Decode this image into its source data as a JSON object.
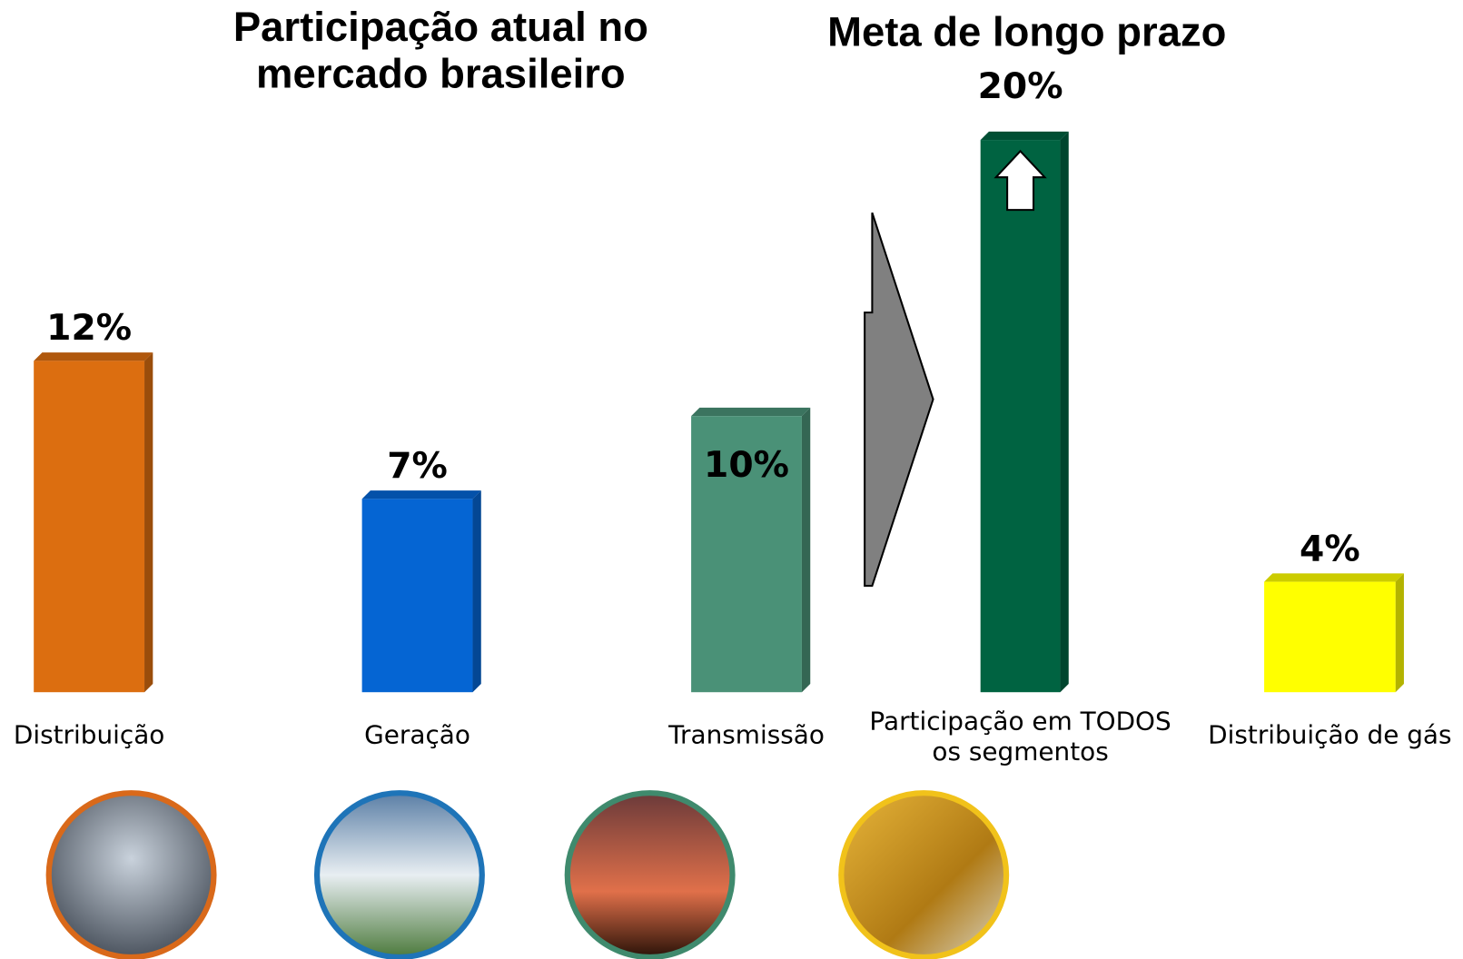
{
  "chart_data": {
    "type": "bar",
    "title": "Participação atual no mercado brasileiro",
    "subtitle": "Meta de longo prazo",
    "categories": [
      "Distribuição",
      "Geração",
      "Transmissão",
      "Participação em TODOS os segmentos",
      "Distribuição de gás"
    ],
    "values": [
      12,
      7,
      10,
      20,
      4
    ],
    "value_labels": [
      "12%",
      "7%",
      "10%",
      "20%",
      "4%"
    ],
    "colors": [
      "#dc6e10",
      "#0565d3",
      "#4a9177",
      "#006341",
      "#ffff00"
    ]
  }
}
